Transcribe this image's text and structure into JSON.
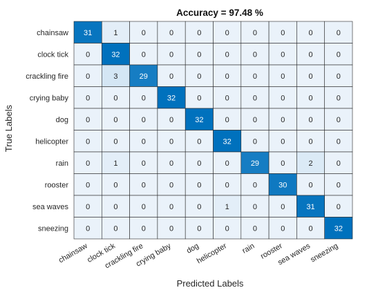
{
  "chart_data": {
    "type": "heatmap",
    "title": "Accuracy = 97.48 %",
    "xlabel": "Predicted Labels",
    "ylabel": "True Labels",
    "classes": [
      "chainsaw",
      "clock tick",
      "crackling fire",
      "crying baby",
      "dog",
      "helicopter",
      "rain",
      "rooster",
      "sea waves",
      "sneezing"
    ],
    "matrix": [
      [
        31,
        1,
        0,
        0,
        0,
        0,
        0,
        0,
        0,
        0
      ],
      [
        0,
        32,
        0,
        0,
        0,
        0,
        0,
        0,
        0,
        0
      ],
      [
        0,
        3,
        29,
        0,
        0,
        0,
        0,
        0,
        0,
        0
      ],
      [
        0,
        0,
        0,
        32,
        0,
        0,
        0,
        0,
        0,
        0
      ],
      [
        0,
        0,
        0,
        0,
        32,
        0,
        0,
        0,
        0,
        0
      ],
      [
        0,
        0,
        0,
        0,
        0,
        32,
        0,
        0,
        0,
        0
      ],
      [
        0,
        1,
        0,
        0,
        0,
        0,
        29,
        0,
        2,
        0
      ],
      [
        0,
        0,
        0,
        0,
        0,
        0,
        0,
        30,
        0,
        0
      ],
      [
        0,
        0,
        0,
        0,
        0,
        1,
        0,
        0,
        31,
        0
      ],
      [
        0,
        0,
        0,
        0,
        0,
        0,
        0,
        0,
        0,
        32
      ]
    ],
    "colormap": {
      "low": "#eaf2fa",
      "high": "#0071bd"
    }
  }
}
